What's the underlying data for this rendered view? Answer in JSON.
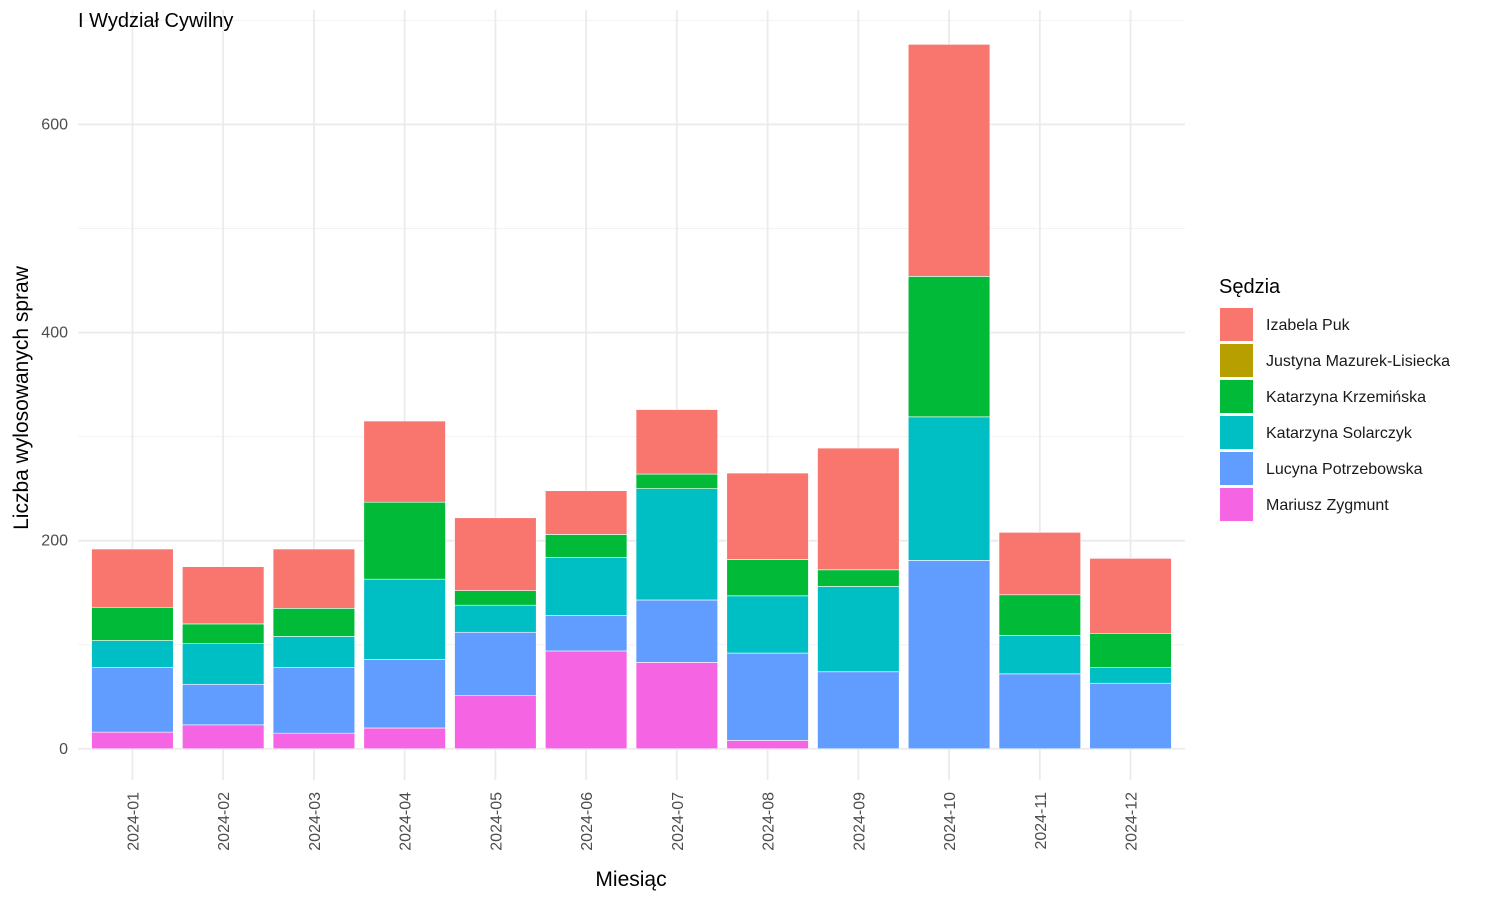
{
  "chart_data": {
    "type": "bar",
    "stacked": true,
    "title": "I Wydział Cywilny",
    "xlabel": "Miesiąc",
    "ylabel": "Liczba wylosowanych spraw",
    "ylim": [
      -30,
      710
    ],
    "yticks": [
      0,
      200,
      400,
      600
    ],
    "grid": true,
    "legend": {
      "title": "Sędzia",
      "position": "right"
    },
    "categories": [
      "2024-01",
      "2024-02",
      "2024-03",
      "2024-04",
      "2024-05",
      "2024-06",
      "2024-07",
      "2024-08",
      "2024-09",
      "2024-10",
      "2024-11",
      "2024-12"
    ],
    "series": [
      {
        "name": "Izabela Puk",
        "color": "#F8766D",
        "values": [
          56,
          55,
          57,
          78,
          70,
          42,
          62,
          83,
          117,
          223,
          60,
          72
        ]
      },
      {
        "name": "Justyna Mazurek-Lisiecka",
        "color": "#B79F00",
        "values": [
          0,
          0,
          0,
          0,
          0,
          0,
          0,
          0,
          0,
          0,
          0,
          0
        ]
      },
      {
        "name": "Katarzyna Krzemińska",
        "color": "#00BA38",
        "values": [
          32,
          19,
          27,
          74,
          14,
          22,
          14,
          35,
          16,
          135,
          39,
          33
        ]
      },
      {
        "name": "Katarzyna Solarczyk",
        "color": "#00BFC4",
        "values": [
          26,
          39,
          30,
          77,
          26,
          56,
          107,
          55,
          82,
          138,
          37,
          15
        ]
      },
      {
        "name": "Lucyna Potrzebowska",
        "color": "#619CFF",
        "values": [
          62,
          39,
          63,
          66,
          61,
          34,
          60,
          84,
          74,
          181,
          72,
          63
        ]
      },
      {
        "name": "Mariusz Zygmunt",
        "color": "#F564E3",
        "values": [
          16,
          23,
          15,
          20,
          51,
          94,
          83,
          8,
          0,
          0,
          0,
          0
        ]
      }
    ]
  }
}
